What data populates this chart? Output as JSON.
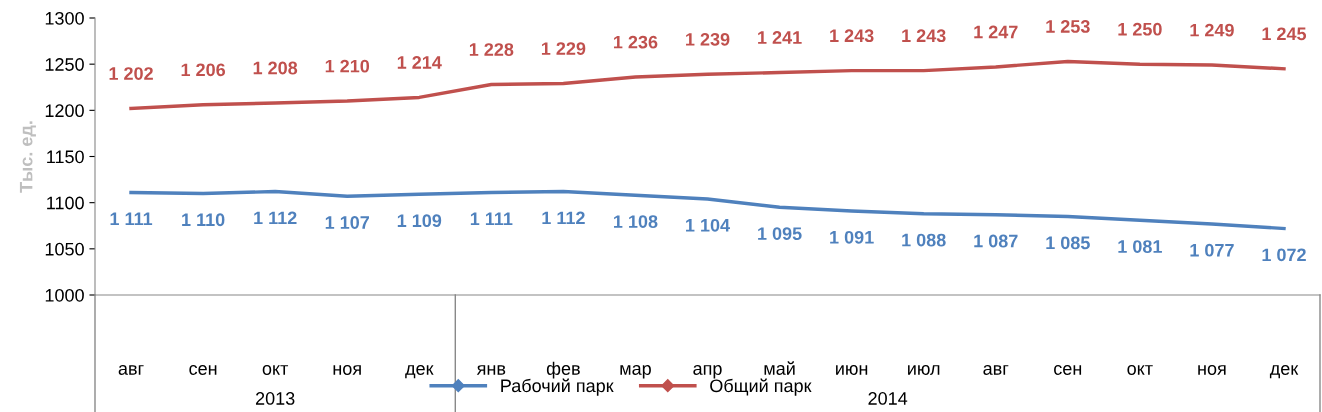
{
  "chart_data": {
    "type": "line",
    "ylabel": "Тыс. ед.",
    "categories": [
      "авг",
      "сен",
      "окт",
      "ноя",
      "дек",
      "янв",
      "фев",
      "мар",
      "апр",
      "май",
      "июн",
      "июл",
      "авг",
      "сен",
      "окт",
      "ноя",
      "дек"
    ],
    "series": [
      {
        "name": "Рабочий парк",
        "color": "#4f81bd",
        "values": [
          1111,
          1110,
          1112,
          1107,
          1109,
          1111,
          1112,
          1108,
          1104,
          1095,
          1091,
          1088,
          1087,
          1085,
          1081,
          1077,
          1072
        ],
        "value_labels": [
          "1 111",
          "1 110",
          "1 112",
          "1 107",
          "1 109",
          "1 111",
          "1 112",
          "1 108",
          "1 104",
          "1 095",
          "1 091",
          "1 088",
          "1 087",
          "1 085",
          "1 081",
          "1 077",
          "1 072"
        ]
      },
      {
        "name": "Общий парк",
        "color": "#c0504d",
        "values": [
          1202,
          1206,
          1208,
          1210,
          1214,
          1228,
          1229,
          1236,
          1239,
          1241,
          1243,
          1243,
          1247,
          1253,
          1250,
          1249,
          1245
        ],
        "value_labels": [
          "1 202",
          "1 206",
          "1 208",
          "1 210",
          "1 214",
          "1 228",
          "1 229",
          "1 236",
          "1 239",
          "1 241",
          "1 243",
          "1 243",
          "1 247",
          "1 253",
          "1 250",
          "1 249",
          "1 245"
        ]
      }
    ],
    "ylim": [
      1000,
      1300
    ],
    "yticks": [
      1000,
      1050,
      1100,
      1150,
      1200,
      1250,
      1300
    ],
    "annotations": [
      "2013",
      "2014"
    ],
    "legend": "bottom",
    "grid": false
  }
}
